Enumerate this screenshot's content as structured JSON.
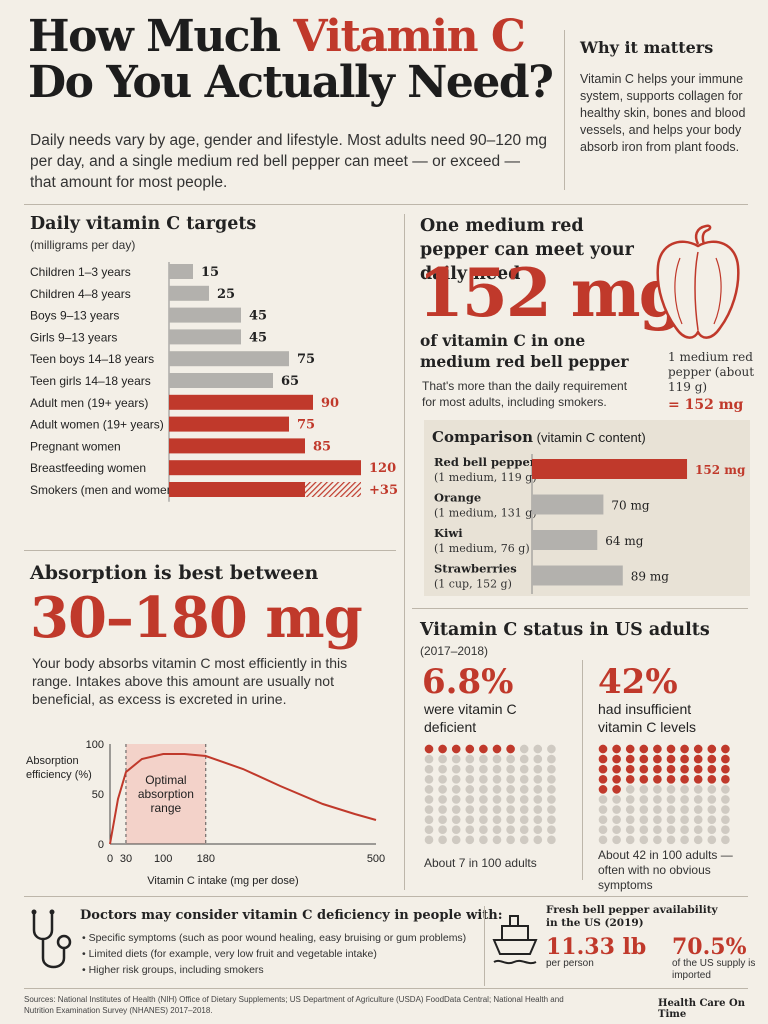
{
  "header": {
    "title_part1": "How Much",
    "title_highlight": "Vitamin C",
    "title_part2": "Do You Actually Need?",
    "subtitle": "Daily needs vary by age, gender and lifestyle. Most adults need 90–120 mg per day, and a single medium red bell pepper can meet — or exceed — that amount for most people."
  },
  "why": {
    "title": "Why it matters",
    "body": "Vitamin C helps your immune system, supports collagen for healthy skin, bones and blood vessels, and helps your body absorb iron from plant foods."
  },
  "targets": {
    "title": "Daily vitamin C targets",
    "unit": "(milligrams per day)"
  },
  "pepper": {
    "heading": "One medium red pepper can meet your daily need",
    "big_value": "152 mg",
    "sub": "of vitamin C in one medium red bell pepper",
    "note": "That's more than the daily requirement for most adults, including smokers.",
    "caption": "1 medium red pepper (about 119 g)",
    "caption_value": "= 152 mg"
  },
  "comparison": {
    "title": "Comparison",
    "title_unit": "(vitamin C content)"
  },
  "absorption": {
    "heading": "Absorption is best between",
    "big_range": "30–180 mg",
    "body": "Your body absorbs vitamin C most efficiently in this range. Intakes above this amount are usually not beneficial, as excess is excreted in urine."
  },
  "us_status": {
    "heading": "Vitamin C status in US adults",
    "years": "(2017–2018)",
    "deficient_pct": "6.8%",
    "deficient_label": "were vitamin C deficient",
    "deficient_caption": "About 7 in 100 adults",
    "deficient_count": 7,
    "insufficient_pct": "42%",
    "insufficient_label": "had insufficient vitamin C levels",
    "insufficient_caption": "About 42 in 100 adults — often with no obvious symptoms",
    "insufficient_count": 42
  },
  "doctors": {
    "heading": "Doctors may consider vitamin C deficiency in people with:",
    "items": [
      "Specific symptoms (such as poor wound healing, easy bruising or gum problems)",
      "Limited diets (for example, very low fruit and vegetable intake)",
      "Higher risk groups, including smokers"
    ]
  },
  "fresh": {
    "title": "Fresh bell pepper availability in the US (2019)",
    "per_person": "11.33 lb",
    "per_person_label": "per person",
    "imported": "70.5%",
    "imported_label": "of the US supply is imported"
  },
  "footer": {
    "sources": "Sources: National Institutes of Health (NIH) Office of Dietary Supplements; US Department of Agriculture (USDA) FoodData Central; National Health and Nutrition Examination Survey (NHANES) 2017–2018.",
    "credit": "Health Care On Time"
  },
  "colors": {
    "accent": "#c0392b",
    "gray_bar": "#b3b1ad",
    "background": "#f3efe7"
  },
  "chart_data": [
    {
      "type": "bar",
      "orientation": "horizontal",
      "title": "Daily vitamin C targets",
      "unit": "(milligrams per day)",
      "categories": [
        "Children 1–3 years",
        "Children 4–8 years",
        "Boys 9–13 years",
        "Girls 9–13 years",
        "Teen boys 14–18 years",
        "Teen girls 14–18 years",
        "Adult men (19+ years)",
        "Adult women (19+ years)",
        "Pregnant women",
        "Breastfeeding women",
        "Smokers (men and women)"
      ],
      "values": [
        15,
        25,
        45,
        45,
        75,
        65,
        90,
        75,
        85,
        120,
        35
      ],
      "labels": [
        "15",
        "25",
        "45",
        "45",
        "75",
        "65",
        "90",
        "75",
        "85",
        "120",
        "+35"
      ],
      "highlight": [
        false,
        false,
        false,
        false,
        false,
        false,
        true,
        true,
        true,
        true,
        true
      ]
    },
    {
      "type": "bar",
      "orientation": "horizontal",
      "title": "Comparison",
      "categories": [
        "Red bell pepper",
        "Orange",
        "Kiwi",
        "Strawberries"
      ],
      "servings": [
        "(1 medium, 119 g)",
        "(1 medium, 131 g)",
        "(1 medium, 76 g)",
        "(1 cup, 152 g)"
      ],
      "values": [
        152,
        70,
        64,
        89
      ],
      "labels": [
        "152 mg",
        "70 mg",
        "64 mg",
        "89 mg"
      ]
    },
    {
      "type": "line",
      "xlabel": "Vitamin C intake (mg per dose)",
      "ylabel": "Absorption efficiency (%)",
      "x_ticks": [
        "0",
        "30",
        "100",
        "180",
        "500"
      ],
      "y_ticks": [
        "0",
        "50",
        "100"
      ],
      "xlim": [
        0,
        500
      ],
      "ylim": [
        0,
        100
      ],
      "x": [
        0,
        15,
        30,
        60,
        100,
        140,
        180,
        250,
        320,
        400,
        460,
        500
      ],
      "y": [
        0,
        45,
        72,
        85,
        90,
        90,
        88,
        75,
        58,
        40,
        30,
        24
      ],
      "band": [
        30,
        180
      ],
      "band_label": "Optimal absorption range"
    }
  ]
}
